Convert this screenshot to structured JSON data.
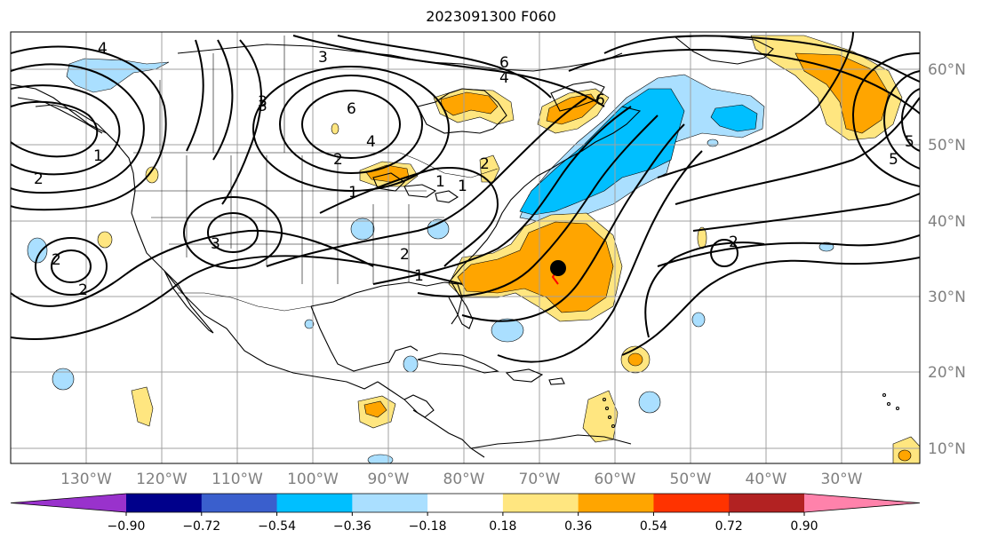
{
  "title": "2023091300 F060",
  "map": {
    "projection": "plate-carree",
    "lon_range": [
      -142,
      -19
    ],
    "lat_range": [
      8,
      65
    ],
    "lon_labels": [
      "130°W",
      "120°W",
      "110°W",
      "100°W",
      "90°W",
      "80°W",
      "70°W",
      "60°W",
      "50°W",
      "40°W",
      "30°W"
    ],
    "lat_labels": [
      "60°N",
      "50°N",
      "40°N",
      "30°N",
      "20°N",
      "10°N"
    ],
    "gridlines": true
  },
  "colorbar": {
    "ticks": [
      "−0.90",
      "−0.72",
      "−0.54",
      "−0.36",
      "−0.18",
      "0.18",
      "0.36",
      "0.54",
      "0.72",
      "0.90"
    ],
    "colors": [
      "#9932cc",
      "#00008b",
      "#3a5fcd",
      "#00bfff",
      "#aadfff",
      "#ffffff",
      "#ffe680",
      "#ffa500",
      "#ff3300",
      "#b22222",
      "#ff82ab"
    ],
    "extend": "both"
  },
  "contour_labels": [
    "3",
    "6",
    "4",
    "6",
    "2",
    "1",
    "4",
    "2",
    "3",
    "2",
    "1",
    "1",
    "2",
    "6",
    "5",
    "5",
    "3",
    "2",
    "1",
    "2",
    "3",
    "2",
    "1",
    "4"
  ],
  "storm_marker": {
    "name": "storm-center",
    "color": "#000000"
  },
  "shading_colors": {
    "light_blue": "#aadfff",
    "sky_blue": "#00bfff",
    "yellow": "#ffe680",
    "orange": "#ffa500",
    "red": "#ff3300"
  }
}
